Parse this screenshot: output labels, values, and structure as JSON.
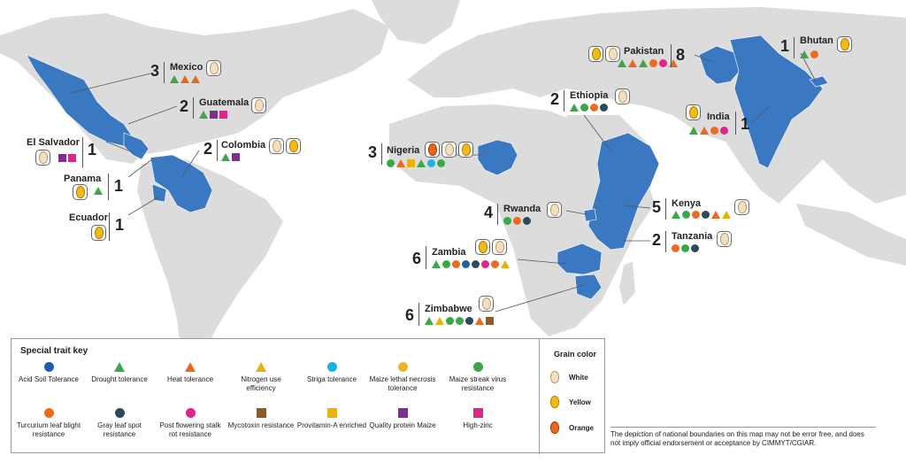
{
  "colors": {
    "land": "#dcdcdc",
    "highlight": "#3a78c2",
    "acid_soil": "#1d5ea8",
    "drought": "#3aa845",
    "heat": "#e8691f",
    "nitrogen": "#e4b20b",
    "striga": "#1ab2e6",
    "mln": "#e9b52a",
    "msv": "#3aa845",
    "turcicum": "#ef6a21",
    "gls": "#2d4a5c",
    "pfsr": "#e2238b",
    "mycotoxin": "#8a5a2b",
    "provitamin": "#e8b210",
    "qpm": "#7b2f8e",
    "zinc": "#e2238b"
  },
  "countries": [
    {
      "id": "mexico",
      "name": "Mexico",
      "count": "3",
      "grains": [
        "white"
      ],
      "traits": [
        "drought",
        "heat",
        "heat"
      ]
    },
    {
      "id": "guatemala",
      "name": "Guatemala",
      "count": "2",
      "grains": [
        "white"
      ],
      "traits": [
        "drought",
        "qpm",
        "zinc"
      ]
    },
    {
      "id": "elsalvador",
      "name": "El Salvador",
      "count": "1",
      "grains": [
        "white"
      ],
      "traits": [
        "qpm",
        "zinc"
      ]
    },
    {
      "id": "colombia",
      "name": "Colombia",
      "count": "2",
      "grains": [
        "white",
        "yellow"
      ],
      "traits": [
        "drought",
        "qpm"
      ]
    },
    {
      "id": "panama",
      "name": "Panama",
      "count": "1",
      "grains": [
        "yellow"
      ],
      "traits": [
        "drought"
      ]
    },
    {
      "id": "ecuador",
      "name": "Ecuador",
      "count": "1",
      "grains": [
        "yellow"
      ],
      "traits": []
    },
    {
      "id": "nigeria",
      "name": "Nigeria",
      "count": "3",
      "grains": [
        "orange",
        "white",
        "yellow"
      ],
      "traits": [
        "msv",
        "heat",
        "provitamin",
        "drought",
        "striga",
        "msv"
      ]
    },
    {
      "id": "ethiopia",
      "name": "Ethiopia",
      "count": "2",
      "grains": [
        "white"
      ],
      "traits": [
        "drought",
        "msv",
        "turcicum",
        "gls"
      ]
    },
    {
      "id": "rwanda",
      "name": "Rwanda",
      "count": "4",
      "grains": [
        "white"
      ],
      "traits": [
        "msv",
        "turcicum",
        "gls"
      ]
    },
    {
      "id": "kenya",
      "name": "Kenya",
      "count": "5",
      "grains": [
        "white"
      ],
      "traits": [
        "drought",
        "msv",
        "turcicum",
        "gls",
        "heat",
        "nitrogen"
      ]
    },
    {
      "id": "tanzania",
      "name": "Tanzania",
      "count": "2",
      "grains": [
        "white"
      ],
      "traits": [
        "turcicum",
        "msv",
        "gls"
      ]
    },
    {
      "id": "zambia",
      "name": "Zambia",
      "count": "6",
      "grains": [
        "yellow",
        "white"
      ],
      "traits": [
        "drought",
        "msv",
        "turcicum",
        "acid_soil",
        "gls",
        "pfsr",
        "turcicum",
        "nitrogen"
      ]
    },
    {
      "id": "zimbabwe",
      "name": "Zimbabwe",
      "count": "6",
      "grains": [
        "white"
      ],
      "traits": [
        "drought",
        "nitrogen",
        "msv",
        "msv",
        "gls",
        "heat",
        "mycotoxin"
      ]
    },
    {
      "id": "pakistan",
      "name": "Pakistan",
      "count": "8",
      "grains": [
        "yellow",
        "white"
      ],
      "traits": [
        "drought",
        "heat",
        "drought",
        "turcicum",
        "pfsr",
        "heat"
      ]
    },
    {
      "id": "bhutan",
      "name": "Bhutan",
      "count": "1",
      "grains": [
        "yellow"
      ],
      "traits": [
        "drought",
        "turcicum"
      ]
    },
    {
      "id": "india",
      "name": "India",
      "count": "1",
      "grains": [
        "yellow"
      ],
      "traits": [
        "drought",
        "heat",
        "turcicum",
        "pfsr"
      ]
    }
  ],
  "legend": {
    "title": "Special trait key",
    "items": [
      {
        "key": "acid_soil",
        "shape": "circle",
        "label": "Acid Soil Tolerance"
      },
      {
        "key": "drought",
        "shape": "tri",
        "label": "Drought tolerance"
      },
      {
        "key": "heat",
        "shape": "tri",
        "label": "Heat tolerance"
      },
      {
        "key": "nitrogen",
        "shape": "tri",
        "label": "Nitrogen use efficiency"
      },
      {
        "key": "striga",
        "shape": "circle",
        "label": "Striga tolerance"
      },
      {
        "key": "mln",
        "shape": "circle",
        "label": "Maize lethal necrosis tolerance"
      },
      {
        "key": "msv",
        "shape": "circle",
        "label": "Maize streak virus resistance"
      },
      {
        "key": "turcicum",
        "shape": "circle",
        "label": "Turcurium leaf blight resistance"
      },
      {
        "key": "gls",
        "shape": "circle",
        "label": "Gray leaf spot resistance"
      },
      {
        "key": "pfsr",
        "shape": "circle",
        "label": "Post flowering stalk rot resistance"
      },
      {
        "key": "mycotoxin",
        "shape": "square",
        "label": "Mycotoxin resistance"
      },
      {
        "key": "provitamin",
        "shape": "square",
        "label": "Provitamin-A enriched"
      },
      {
        "key": "qpm",
        "shape": "square",
        "label": "Quality protein Maize"
      },
      {
        "key": "zinc",
        "shape": "square",
        "label": "High-zinc"
      }
    ],
    "grain_title": "Grain color",
    "grains": [
      {
        "key": "white",
        "label": "White"
      },
      {
        "key": "yellow",
        "label": "Yellow"
      },
      {
        "key": "orange",
        "label": "Orange"
      }
    ]
  },
  "disclaimer": "The depiction of national boundaries on this map may not be error free, and does not imply official endorsement or acceptance by CIMMYT/CGIAR."
}
